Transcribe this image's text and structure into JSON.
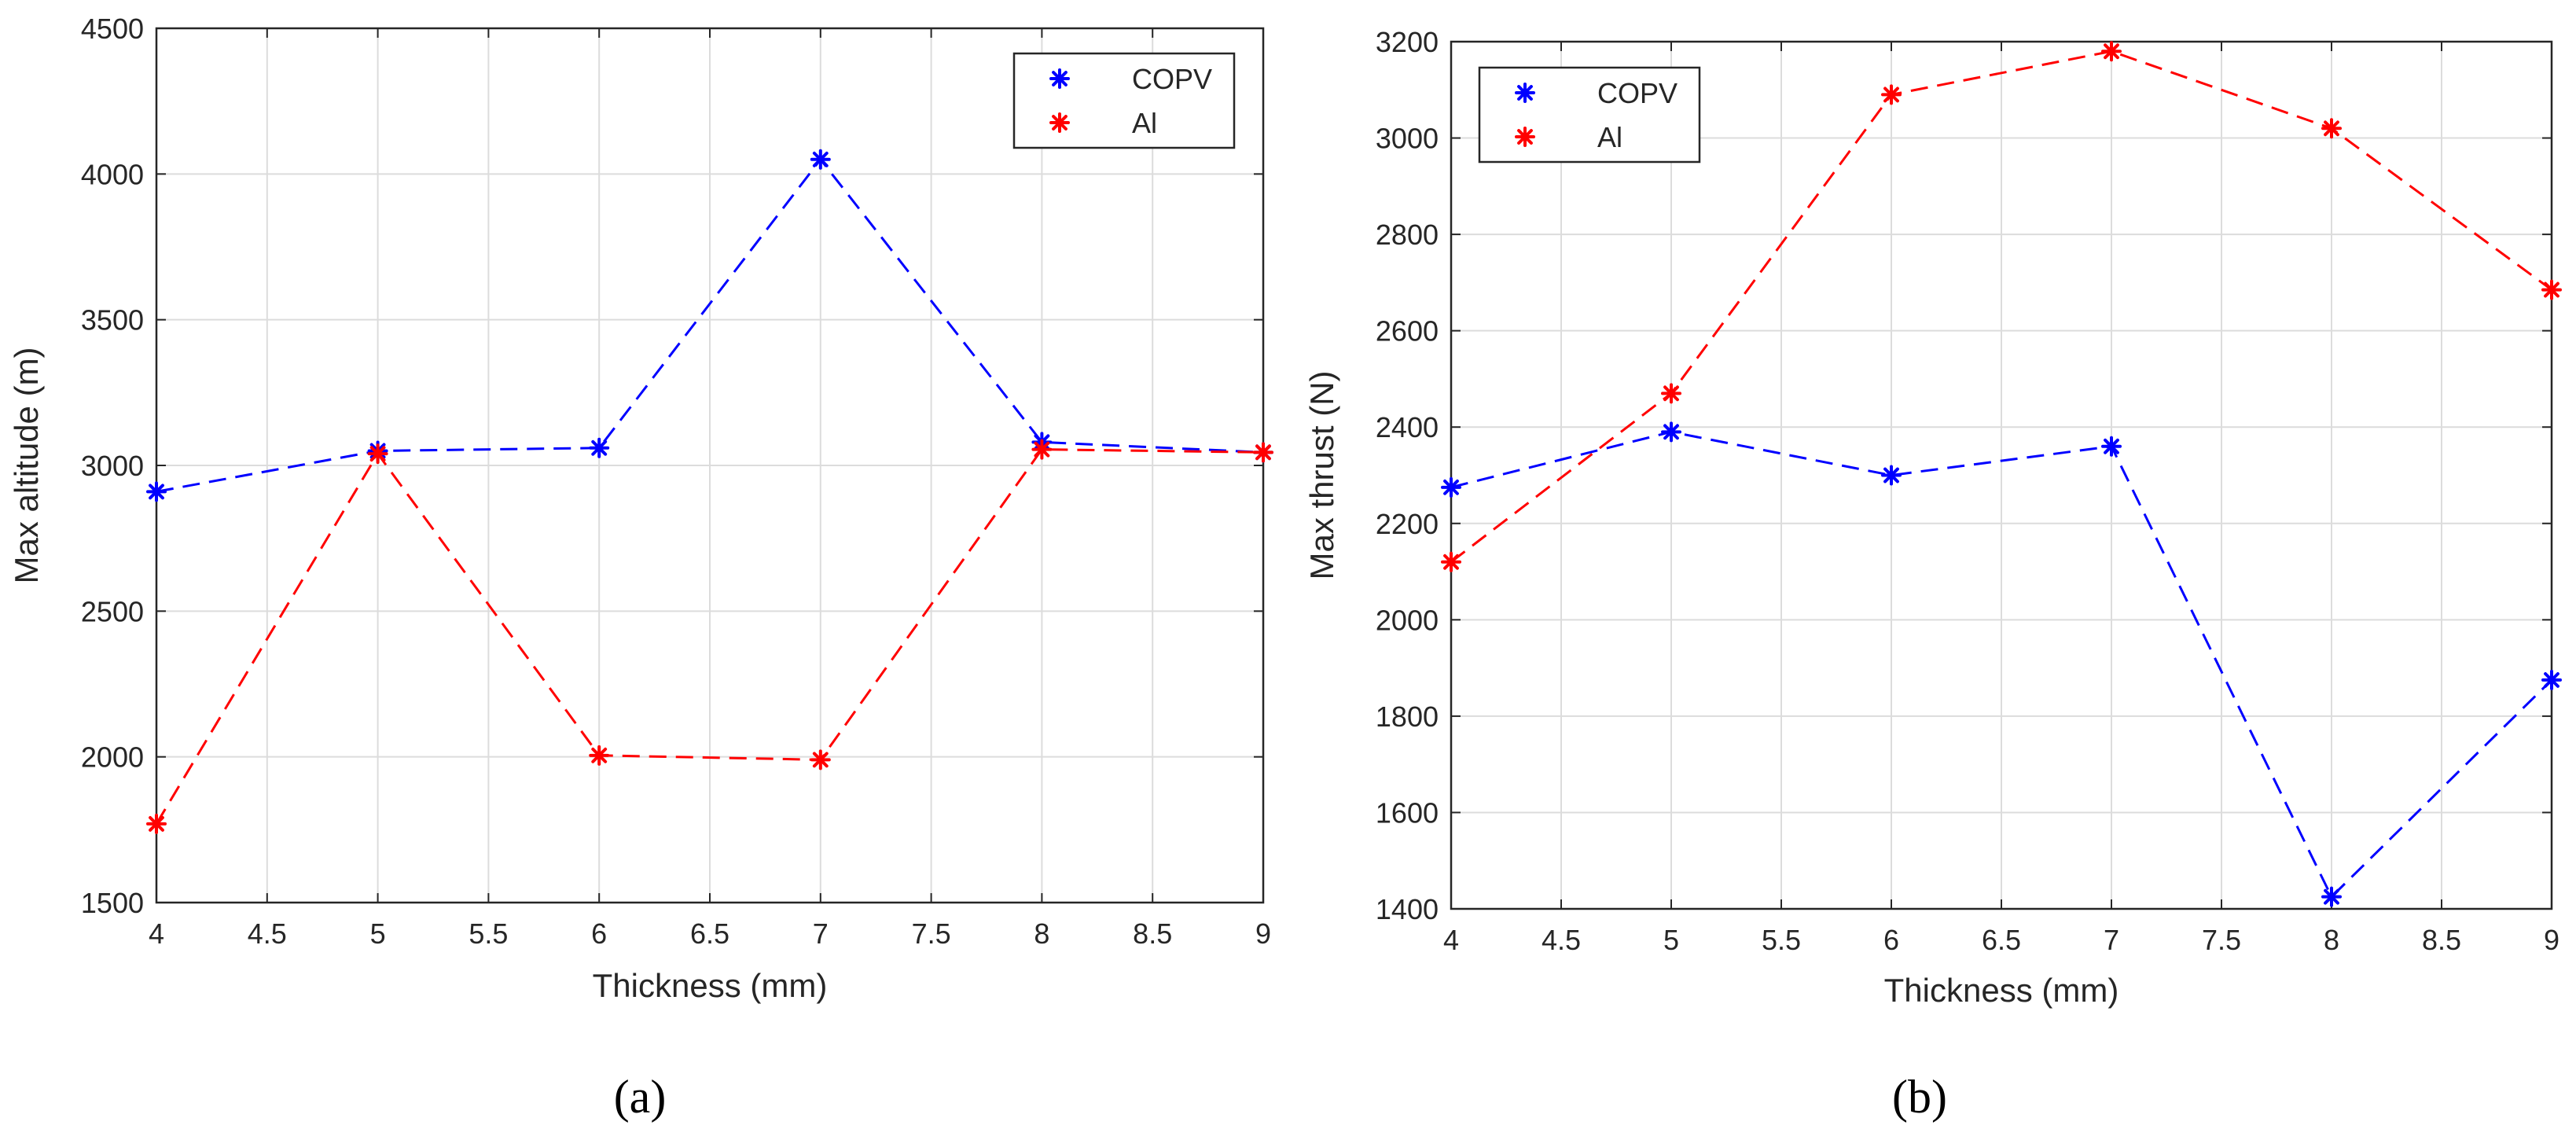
{
  "chart_data": [
    {
      "type": "line",
      "panel_label": "a",
      "panel_label_display": "(a)",
      "title": "",
      "xlabel": "Thickness (mm)",
      "ylabel": "Max altitude (m)",
      "xlim": [
        4,
        9
      ],
      "ylim": [
        1500,
        4500
      ],
      "xticks": [
        4,
        4.5,
        5,
        5.5,
        6,
        6.5,
        7,
        7.5,
        8,
        8.5,
        9
      ],
      "yticks": [
        1500,
        2000,
        2500,
        3000,
        3500,
        4000,
        4500
      ],
      "grid": true,
      "legend_position": "top-right",
      "x": [
        4,
        5,
        6,
        7,
        8,
        9
      ],
      "series": [
        {
          "name": "COPV",
          "color": "#0000ff",
          "values": [
            2910,
            3050,
            3060,
            4050,
            3080,
            3045
          ]
        },
        {
          "name": "Al",
          "color": "#ff0000",
          "values": [
            1770,
            3040,
            2005,
            1990,
            3055,
            3045
          ]
        }
      ]
    },
    {
      "type": "line",
      "panel_label": "b",
      "panel_label_display": "(b)",
      "title": "",
      "xlabel": "Thickness (mm)",
      "ylabel": "Max thrust (N)",
      "xlim": [
        4,
        9
      ],
      "ylim": [
        1400,
        3200
      ],
      "xticks": [
        4,
        4.5,
        5,
        5.5,
        6,
        6.5,
        7,
        7.5,
        8,
        8.5,
        9
      ],
      "yticks": [
        1400,
        1600,
        1800,
        2000,
        2200,
        2400,
        2600,
        2800,
        3000,
        3200
      ],
      "grid": true,
      "legend_position": "top-left",
      "x": [
        4,
        5,
        6,
        7,
        8,
        9
      ],
      "series": [
        {
          "name": "COPV",
          "color": "#0000ff",
          "values": [
            2275,
            2390,
            2300,
            2360,
            1425,
            1875
          ]
        },
        {
          "name": "Al",
          "color": "#ff0000",
          "values": [
            2120,
            2470,
            3090,
            3180,
            3020,
            2685
          ]
        }
      ]
    }
  ]
}
